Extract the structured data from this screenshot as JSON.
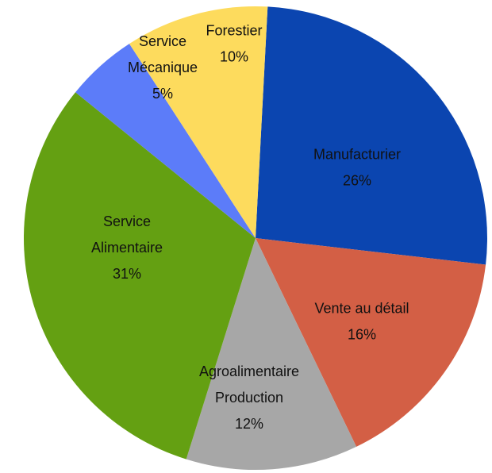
{
  "chart_data": {
    "type": "pie",
    "start_angle_deg": 3,
    "direction": "clockwise",
    "legend": "none",
    "labels_on_slices": true,
    "slices": [
      {
        "name": "Manufacturier",
        "label_lines": [
          "Manufacturier"
        ],
        "value": 26,
        "value_label": "26%",
        "color": "#0b45b0"
      },
      {
        "name": "Vente au détail",
        "label_lines": [
          "Vente au détail"
        ],
        "value": 16,
        "value_label": "16%",
        "color": "#d35f45"
      },
      {
        "name": "Agroalimentaire Production",
        "label_lines": [
          "Agroalimentaire",
          "Production"
        ],
        "value": 12,
        "value_label": "12%",
        "color": "#a7a7a7"
      },
      {
        "name": "Service Alimentaire",
        "label_lines": [
          "Service",
          "Alimentaire"
        ],
        "value": 31,
        "value_label": "31%",
        "color": "#64a012"
      },
      {
        "name": "Service Mécanique",
        "label_lines": [
          "Service",
          "Mécanique"
        ],
        "value": 5,
        "value_label": "5%",
        "color": "#5c7cf9"
      },
      {
        "name": "Forestier",
        "label_lines": [
          "Forestier"
        ],
        "value": 10,
        "value_label": "10%",
        "color": "#fddb5d"
      }
    ]
  }
}
